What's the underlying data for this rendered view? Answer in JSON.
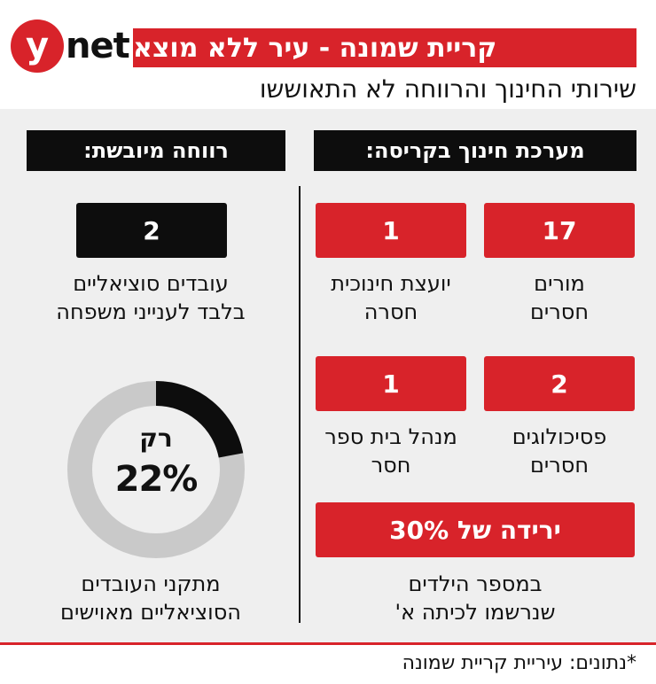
{
  "header": {
    "logo_letter": "y",
    "logo_word": "net",
    "title": "קריית שמונה - עיר ללא מוצא",
    "subtitle": "שירותי החינוך והרווחה לא התאוששו"
  },
  "education": {
    "header": "מערכת חינוך בקריסה:",
    "items": [
      {
        "value": "17",
        "label_line1": "מורים",
        "label_line2": "חסרים"
      },
      {
        "value": "1",
        "label_line1": "יועצת חינוכית",
        "label_line2": "חסרה"
      },
      {
        "value": "2",
        "label_line1": "פסיכולוגים",
        "label_line2": "חסרים"
      },
      {
        "value": "1",
        "label_line1": "מנהל בית ספר",
        "label_line2": "חסר"
      }
    ],
    "drop_box": "ירידה של 30%",
    "drop_line1": "במספר הילדים",
    "drop_line2": "שנרשמו לכיתה א'"
  },
  "welfare": {
    "header": "רווחה מיובשת:",
    "social_workers_value": "2",
    "social_workers_line1": "עובדים סוציאליים",
    "social_workers_line2": "בלבד לענייני משפחה",
    "donut_word": "רק",
    "donut_value": "22%",
    "donut_percent": 22,
    "donut_colors": {
      "filled": "#0d0d0d",
      "remaining": "#c9c9c9"
    },
    "positions_line1": "מתקני העובדים",
    "positions_line2": "הסוציאליים מאוישים"
  },
  "footer": {
    "source": "*נתונים: עיריית קריית שמונה"
  },
  "colors": {
    "accent_red": "#d8232a",
    "black": "#0d0d0d",
    "panel_bg": "#efefef"
  }
}
